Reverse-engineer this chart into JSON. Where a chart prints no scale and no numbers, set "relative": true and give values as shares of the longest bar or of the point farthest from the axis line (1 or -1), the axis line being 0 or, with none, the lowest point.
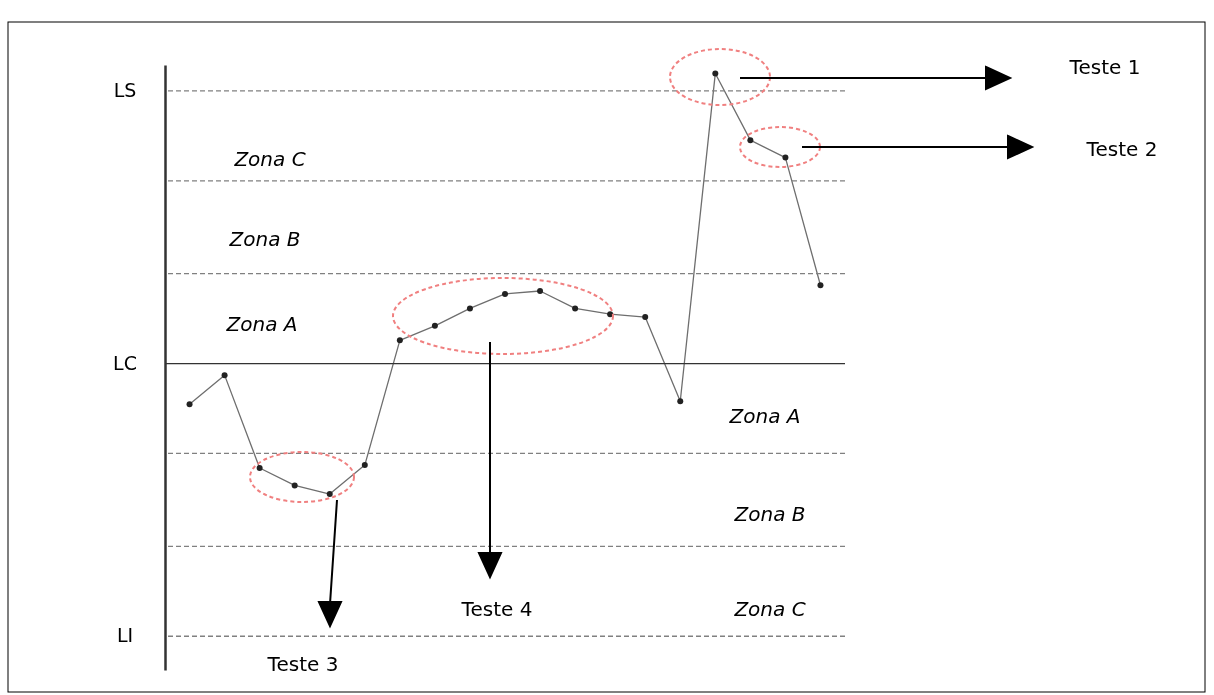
{
  "chart_data": {
    "type": "line",
    "relative": true,
    "categories": [
      null,
      null,
      null,
      null,
      null,
      null,
      null,
      null,
      null,
      null,
      null,
      null,
      null,
      null,
      null,
      null,
      null,
      null,
      null
    ],
    "series": [
      {
        "color": "#6e6e6e",
        "values": [
          -0.14,
          -0.04,
          -0.36,
          -0.42,
          -0.45,
          -0.35,
          0.08,
          0.13,
          0.19,
          0.24,
          0.25,
          0.19,
          0.17,
          0.16,
          -0.13,
          1,
          0.77,
          0.71,
          0.27
        ]
      }
    ],
    "marker": "circle",
    "line_style": "solid",
    "ref_lines": [
      {
        "axis": "y",
        "value": 0.94,
        "label": "LS",
        "color": "#808080",
        "line_style": "dashed"
      },
      {
        "axis": "y",
        "value": 0.63,
        "color": "#808080",
        "line_style": "dashed"
      },
      {
        "axis": "y",
        "value": 0.31,
        "color": "#808080",
        "line_style": "dashed"
      },
      {
        "axis": "y",
        "value": 0,
        "label": "LC",
        "color": "#333333",
        "line_style": "solid"
      },
      {
        "axis": "y",
        "value": -0.31,
        "color": "#808080",
        "line_style": "dashed"
      },
      {
        "axis": "y",
        "value": -0.63,
        "color": "#808080",
        "line_style": "dashed"
      },
      {
        "axis": "y",
        "value": -0.94,
        "label": "LI",
        "color": "#808080",
        "line_style": "dashed"
      }
    ],
    "annotations": [
      "Zona C",
      "Zona B",
      "Zona A",
      "Zona A",
      "Zona B",
      "Zona C",
      "Teste 1",
      "Teste 2",
      "Teste 3",
      "Teste 4"
    ]
  }
}
